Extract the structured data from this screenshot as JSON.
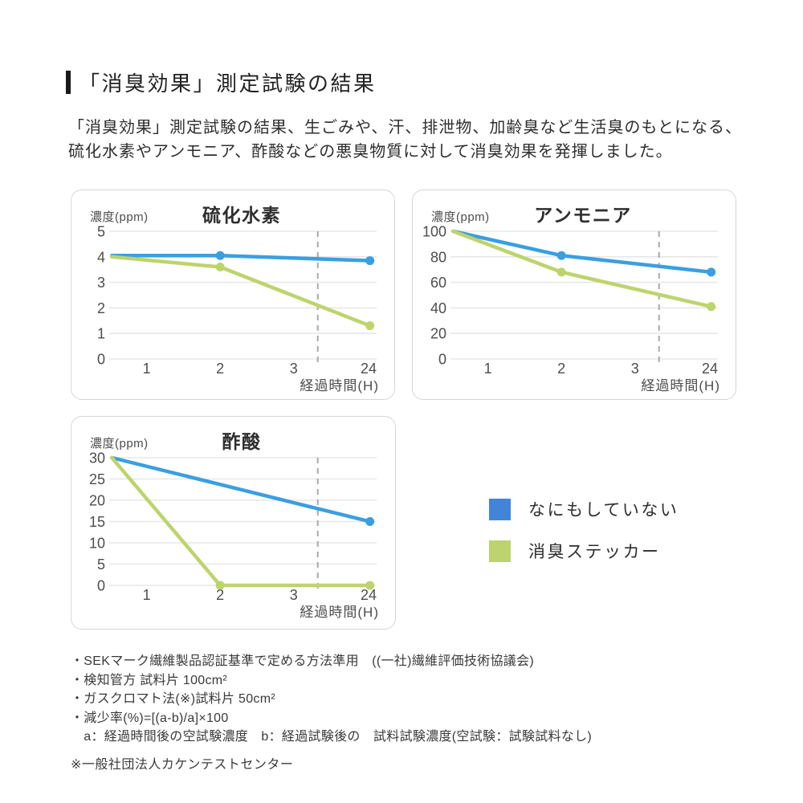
{
  "page": {
    "heading": "「消臭効果」測定試験の結果",
    "intro_line1": "「消臭効果」測定試験の結果、生ごみや、汗、排泄物、加齢臭など生活臭のもとになる、",
    "intro_line2": "硫化水素やアンモニア、酢酸などの悪臭物質に対して消臭効果を発揮しました。"
  },
  "colors": {
    "blue_line": "#3a9fe0",
    "green_line": "#bdd46c",
    "legend_blue": "#4285d8",
    "legend_green": "#bcd36e",
    "grid": "#e7e7e7",
    "dashed_guide": "#a9a9a9",
    "tick_text": "#4d4d4d",
    "title_text": "#2e2e2e"
  },
  "legend": {
    "items": [
      {
        "label": "なにもしていない",
        "color_key": "blue"
      },
      {
        "label": "消臭ステッカー",
        "color_key": "green"
      }
    ]
  },
  "footnotes": {
    "lines": [
      "・SEKマーク繊維製品認証基準で定める方法準用　((一社)繊維評価技術協議会)",
      "・検知管方 試料片 100cm²",
      "・ガスクロマト法(※)試料片 50cm²",
      "・減少率(%)=[(a-b)/a]×100",
      "　a：経過時間後の空試験濃度　b：経過試験後の　試料試験濃度(空試験：試験試料なし)"
    ],
    "note": "※一般社団法人カケンテストセンター"
  },
  "chart_data": [
    {
      "type": "line",
      "title": "硫化水素",
      "ylabel": "濃度(ppm)",
      "xlabel": "経過時間(H)",
      "x_ticks": [
        "1",
        "2",
        "3",
        "24"
      ],
      "y_ticks": [
        0,
        1,
        2,
        3,
        4,
        5
      ],
      "y_max": 5,
      "grid": true,
      "dashed_guide_x_frac": 0.78,
      "series": [
        {
          "name": "なにもしていない",
          "color_key": "blue",
          "points": [
            {
              "x_frac": 0.01,
              "y": 4.05,
              "dot": false
            },
            {
              "x_frac": 0.415,
              "y": 4.05,
              "dot": true
            },
            {
              "x_frac": 0.975,
              "y": 3.85,
              "dot": true
            }
          ]
        },
        {
          "name": "消臭ステッカー",
          "color_key": "green",
          "points": [
            {
              "x_frac": 0.01,
              "y": 4.0,
              "dot": false
            },
            {
              "x_frac": 0.415,
              "y": 3.6,
              "dot": true
            },
            {
              "x_frac": 0.975,
              "y": 1.3,
              "dot": true
            }
          ]
        }
      ]
    },
    {
      "type": "line",
      "title": "アンモニア",
      "ylabel": "濃度(ppm)",
      "xlabel": "経過時間(H)",
      "x_ticks": [
        "1",
        "2",
        "3",
        "24"
      ],
      "y_ticks": [
        0,
        20,
        40,
        60,
        80,
        100
      ],
      "y_max": 100,
      "grid": true,
      "dashed_guide_x_frac": 0.78,
      "series": [
        {
          "name": "なにもしていない",
          "color_key": "blue",
          "points": [
            {
              "x_frac": 0.01,
              "y": 100,
              "dot": false
            },
            {
              "x_frac": 0.415,
              "y": 81,
              "dot": true
            },
            {
              "x_frac": 0.975,
              "y": 68,
              "dot": true
            }
          ]
        },
        {
          "name": "消臭ステッカー",
          "color_key": "green",
          "points": [
            {
              "x_frac": 0.01,
              "y": 100,
              "dot": false
            },
            {
              "x_frac": 0.415,
              "y": 68,
              "dot": true
            },
            {
              "x_frac": 0.975,
              "y": 41,
              "dot": true
            }
          ]
        }
      ]
    },
    {
      "type": "line",
      "title": "酢酸",
      "ylabel": "濃度(ppm)",
      "xlabel": "経過時間(H)",
      "x_ticks": [
        "1",
        "2",
        "3",
        "24"
      ],
      "y_ticks": [
        0,
        5,
        10,
        15,
        20,
        25,
        30
      ],
      "y_max": 30,
      "grid": true,
      "dashed_guide_x_frac": 0.78,
      "series": [
        {
          "name": "なにもしていない",
          "color_key": "blue",
          "points": [
            {
              "x_frac": 0.01,
              "y": 30,
              "dot": false
            },
            {
              "x_frac": 0.975,
              "y": 15,
              "dot": true
            }
          ]
        },
        {
          "name": "消臭ステッカー",
          "color_key": "green",
          "points": [
            {
              "x_frac": 0.01,
              "y": 30,
              "dot": false
            },
            {
              "x_frac": 0.415,
              "y": 0,
              "dot": true
            },
            {
              "x_frac": 0.975,
              "y": 0,
              "dot": true
            }
          ]
        }
      ]
    }
  ]
}
